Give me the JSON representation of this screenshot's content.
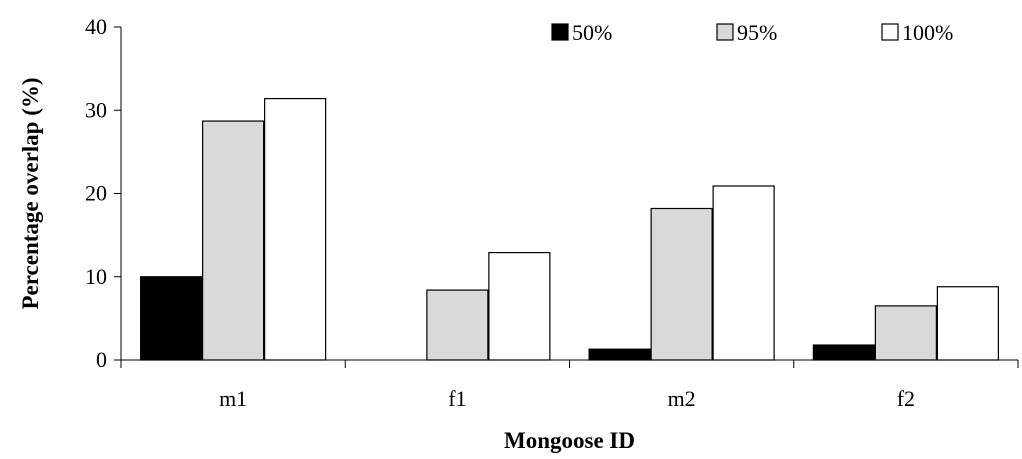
{
  "chart_data": {
    "type": "bar",
    "title": "",
    "xlabel": "Mongoose ID",
    "ylabel": "Percentage overlap (%)",
    "categories": [
      "m1",
      "f1",
      "m2",
      "f2"
    ],
    "ylim": [
      0,
      40
    ],
    "yticks": [
      0,
      10,
      20,
      30,
      40
    ],
    "grid": false,
    "legend_position": "top-right",
    "series": [
      {
        "name": "50%",
        "color": "#000000",
        "values": [
          10.0,
          0.0,
          1.3,
          1.8
        ]
      },
      {
        "name": "95%",
        "color": "#d9d9d9",
        "values": [
          28.7,
          8.4,
          18.2,
          6.5
        ]
      },
      {
        "name": "100%",
        "color": "#ffffff",
        "values": [
          31.4,
          12.9,
          20.9,
          8.8
        ]
      }
    ]
  }
}
